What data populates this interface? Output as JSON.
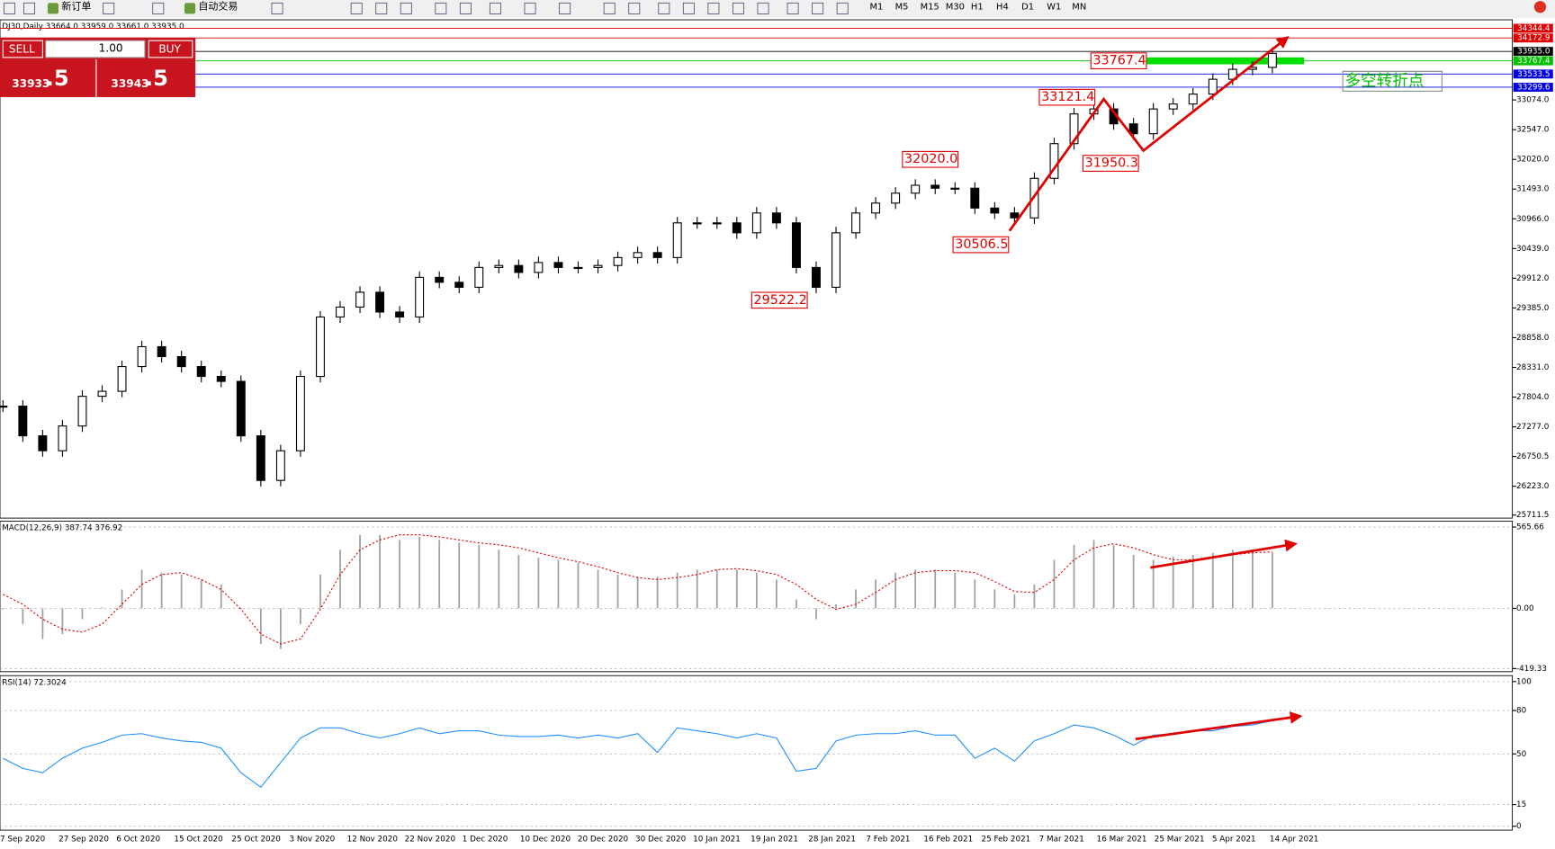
{
  "toolbar": {
    "buttons": [
      "新订单",
      "自动交易"
    ],
    "timeframes": [
      "M1",
      "M5",
      "M15",
      "M30",
      "H1",
      "H4",
      "D1",
      "W1",
      "MN"
    ]
  },
  "trade_panel": {
    "sell": "SELL",
    "buy": "BUY",
    "lots": "1.00",
    "bid_main": "33933",
    "bid_frac": ".5",
    "ask_main": "33943",
    "ask_frac": ".5"
  },
  "time_axis": [
    "7 Sep 2020",
    "27 Sep 2020",
    "6 Oct 2020",
    "15 Oct 2020",
    "25 Oct 2020",
    "3 Nov 2020",
    "12 Nov 2020",
    "22 Nov 2020",
    "1 Dec 2020",
    "10 Dec 2020",
    "20 Dec 2020",
    "30 Dec 2020",
    "10 Jan 2021",
    "19 Jan 2021",
    "28 Jan 2021",
    "7 Feb 2021",
    "16 Feb 2021",
    "25 Feb 2021",
    "7 Mar 2021",
    "16 Mar 2021",
    "25 Mar 2021",
    "5 Apr 2021",
    "14 Apr 2021"
  ],
  "chart_data": [
    {
      "type": "candlestick",
      "title": "DJ30,Daily 33664.0 33959.0 33661.0 33935.0",
      "ylim": [
        25658,
        34495
      ],
      "yticks": [
        {
          "value": 25711.5,
          "label": "25711.5"
        },
        {
          "value": 26223,
          "label": "26223.0"
        },
        {
          "value": 26750.5,
          "label": "26750.5"
        },
        {
          "value": 27277,
          "label": "27277.0"
        },
        {
          "value": 27804,
          "label": "27804.0"
        },
        {
          "value": 28331,
          "label": "28331.0"
        },
        {
          "value": 28858,
          "label": "28858.0"
        },
        {
          "value": 29385,
          "label": "29385.0"
        },
        {
          "value": 29912,
          "label": "29912.0"
        },
        {
          "value": 30439,
          "label": "30439.0"
        },
        {
          "value": 30966,
          "label": "30966.0"
        },
        {
          "value": 31493,
          "label": "31493.0"
        },
        {
          "value": 32020,
          "label": "32020.0"
        },
        {
          "value": 32547,
          "label": "32547.0"
        },
        {
          "value": 33074,
          "label": "33074.0"
        }
      ],
      "values": [
        27644,
        27117,
        26853,
        27292,
        27819,
        27907,
        28346,
        28698,
        28522,
        28346,
        28171,
        28083,
        27117,
        26326,
        26853,
        28171,
        29225,
        29401,
        29664,
        29313,
        29225,
        29928,
        29840,
        29752,
        30103,
        30138,
        30015,
        30191,
        30103,
        30103,
        30138,
        30279,
        30367,
        30279,
        30894,
        30894,
        30894,
        30718,
        31069,
        30894,
        30103,
        29752,
        30718,
        31069,
        31245,
        31421,
        31561,
        31509,
        31509,
        31157,
        31069,
        30982,
        31684,
        32299,
        32826,
        32914,
        32650,
        32475,
        32914,
        33002,
        33178,
        33441,
        33617,
        33652,
        33900
      ],
      "price_lines": [
        {
          "value": 34344.4,
          "color": "#e00000"
        },
        {
          "value": 34172.9,
          "color": "#e00000"
        },
        {
          "value": 33935,
          "label": "33935.0",
          "color": "#000000"
        },
        {
          "value": 33767.4,
          "color": "#00c000"
        },
        {
          "value": 33533.5,
          "color": "#0000e0"
        },
        {
          "value": 33299.6,
          "color": "#0000e0"
        }
      ],
      "annotations": [
        33767.4,
        33121.4,
        {
          "value": 32020,
          "label": "32020.0"
        },
        31950.3,
        30506.5,
        29522.2
      ],
      "note": "多空转折点"
    },
    {
      "type": "macd",
      "title": "MACD(12,26,9) 387.74 376.92",
      "ylim": [
        -441,
        607
      ],
      "yticks": [
        565.66,
        {
          "value": 0,
          "label": "0.00"
        },
        -419.33
      ],
      "series": [
        {
          "color": "#a0a0a0",
          "values": [
            -7,
            -110,
            -214,
            -180,
            -76,
            7,
            131,
            269,
            248,
            234,
            200,
            166,
            -7,
            -248,
            -283,
            -110,
            234,
            407,
            510,
            510,
            476,
            497,
            476,
            455,
            441,
            407,
            372,
            352,
            338,
            317,
            269,
            234,
            221,
            221,
            248,
            269,
            269,
            269,
            248,
            200,
            62,
            -76,
            28,
            131,
            200,
            248,
            269,
            269,
            248,
            200,
            131,
            97,
            166,
            338,
            441,
            476,
            441,
            372,
            338,
            359,
            372,
            386,
            407,
            407,
            386
          ]
        },
        {
          "color": "#e00000",
          "values": [
            97,
            28,
            -76,
            -145,
            -166,
            -110,
            28,
            166,
            235,
            248,
            200,
            131,
            -7,
            -179,
            -248,
            -214,
            -7,
            235,
            407,
            476,
            511,
            511,
            497,
            476,
            455,
            442,
            421,
            386,
            352,
            324,
            290,
            248,
            214,
            200,
            214,
            235,
            269,
            276,
            262,
            235,
            166,
            62,
            -7,
            28,
            110,
            200,
            248,
            262,
            262,
            248,
            186,
            117,
            110,
            200,
            338,
            421,
            449,
            421,
            373,
            338,
            338,
            359,
            373,
            386,
            393
          ]
        }
      ]
    },
    {
      "type": "line",
      "title": "RSI(14) 72.3024",
      "ylim": [
        -2.7,
        104.1
      ],
      "yticks": [
        100,
        80,
        50,
        15,
        0
      ],
      "color": "#1e90ff",
      "values": [
        47,
        40,
        37,
        47,
        54,
        58,
        63,
        64,
        61,
        59,
        58,
        54,
        37,
        27,
        44,
        61,
        68,
        68,
        64,
        61,
        64,
        68,
        64,
        66,
        66,
        63,
        62,
        62,
        63,
        61,
        63,
        61,
        64,
        51,
        68,
        66,
        64,
        61,
        64,
        61,
        38,
        40,
        59,
        63,
        64,
        64,
        66,
        63,
        63,
        47,
        54,
        45,
        59,
        64,
        70,
        68,
        63,
        56,
        63,
        64,
        66,
        66,
        69,
        70,
        73
      ]
    }
  ]
}
